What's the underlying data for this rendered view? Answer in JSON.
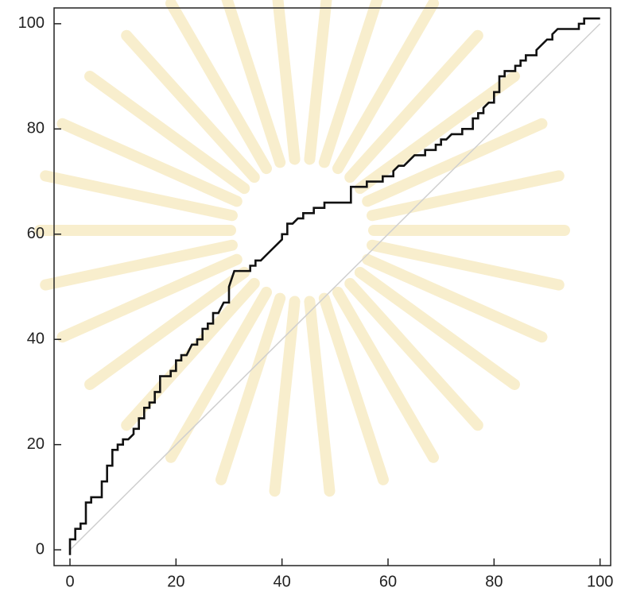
{
  "chart_data": {
    "type": "line",
    "xlim": [
      -3,
      102
    ],
    "ylim": [
      -3,
      103
    ],
    "xticks": [
      0,
      20,
      40,
      60,
      80,
      100
    ],
    "yticks": [
      0,
      20,
      40,
      60,
      80,
      100
    ],
    "series": [
      {
        "color": "#cfcfcf",
        "x": [
          0,
          100
        ],
        "values": [
          0,
          100
        ]
      },
      {
        "color": "#111111",
        "x": [
          0,
          0,
          1,
          1,
          2,
          2,
          3,
          3,
          4,
          4,
          6,
          6,
          7,
          7,
          8,
          8,
          9,
          9,
          10,
          10,
          11,
          12,
          12,
          13,
          13,
          14,
          14,
          15,
          15,
          16,
          16,
          17,
          17,
          19,
          19,
          20,
          20,
          21,
          21,
          22,
          23,
          24,
          24,
          25,
          25,
          26,
          26,
          27,
          27,
          28,
          29,
          30,
          30,
          31,
          33,
          34,
          34,
          35,
          35,
          36,
          37,
          38,
          39,
          40,
          40,
          41,
          41,
          42,
          43,
          44,
          44,
          46,
          46,
          48,
          48,
          53,
          53,
          56,
          56,
          59,
          59,
          61,
          61,
          62,
          63,
          64,
          65,
          67,
          67,
          69,
          69,
          70,
          70,
          71,
          72,
          74,
          74,
          76,
          76,
          77,
          77,
          78,
          78,
          79,
          80,
          80,
          81,
          81,
          82,
          82,
          84,
          84,
          85,
          85,
          86,
          86,
          88,
          88,
          89,
          90,
          91,
          91,
          92,
          94,
          96,
          96,
          97,
          97,
          100
        ],
        "values": [
          -1,
          2,
          2,
          4,
          4,
          5,
          5,
          9,
          9,
          10,
          10,
          13,
          13,
          16,
          16,
          19,
          19,
          20,
          20,
          21,
          21,
          22,
          23,
          23,
          25,
          25,
          27,
          27,
          28,
          28,
          30,
          30,
          33,
          33,
          34,
          34,
          36,
          36,
          37,
          37,
          39,
          39,
          40,
          40,
          42,
          42,
          43,
          43,
          45,
          45,
          47,
          47,
          50,
          53,
          53,
          53,
          54,
          54,
          55,
          55,
          56,
          57,
          58,
          59,
          60,
          60,
          62,
          62,
          63,
          63,
          64,
          64,
          65,
          65,
          66,
          66,
          69,
          69,
          70,
          70,
          71,
          71,
          72,
          73,
          73,
          74,
          75,
          75,
          76,
          76,
          77,
          77,
          78,
          78,
          79,
          79,
          80,
          80,
          82,
          82,
          83,
          83,
          84,
          85,
          85,
          87,
          87,
          90,
          90,
          91,
          91,
          92,
          92,
          93,
          93,
          94,
          94,
          95,
          96,
          97,
          97,
          98,
          99,
          99,
          99,
          100,
          100,
          101,
          101
        ]
      }
    ]
  }
}
